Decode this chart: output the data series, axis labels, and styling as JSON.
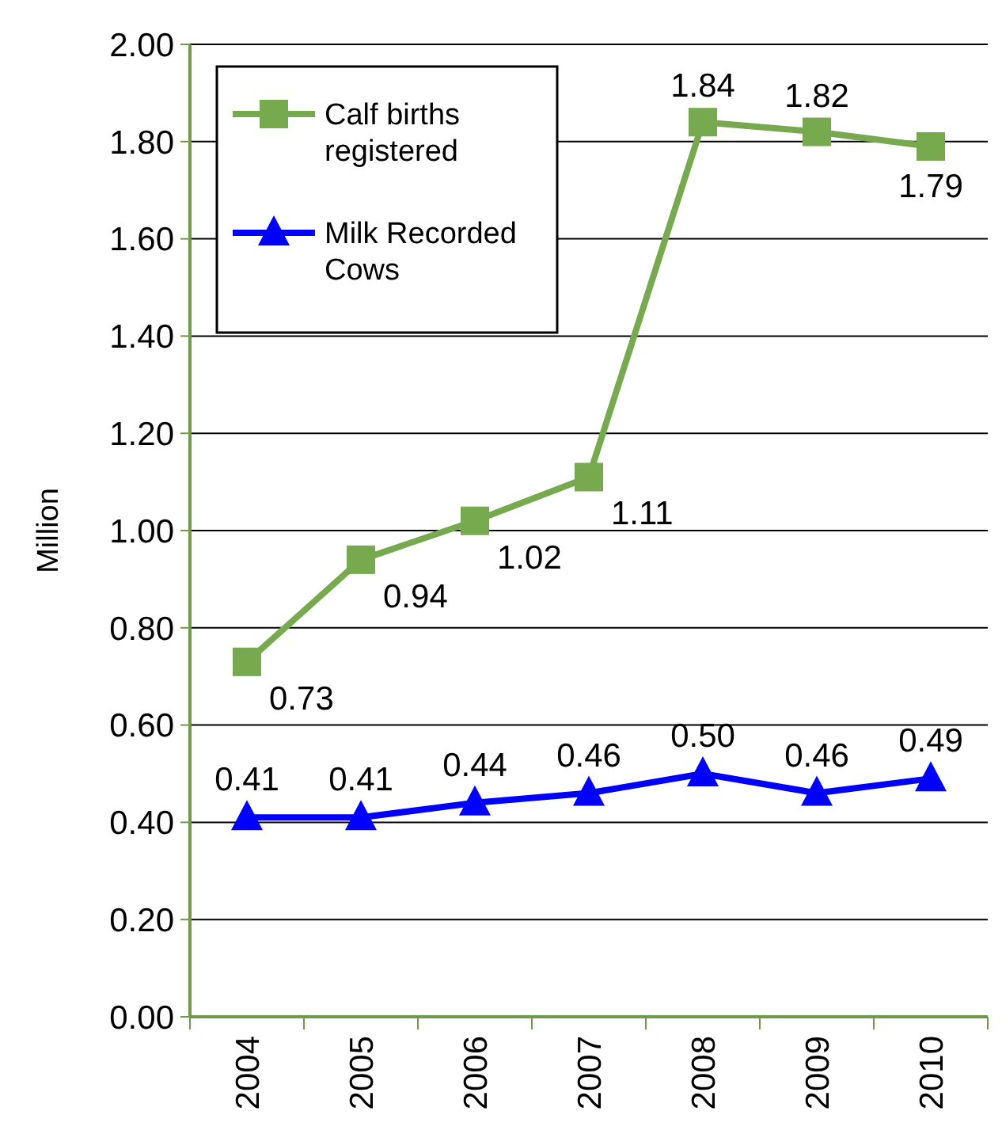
{
  "chart_data": {
    "type": "line",
    "ylabel": "Million",
    "categories": [
      "2004",
      "2005",
      "2006",
      "2007",
      "2008",
      "2009",
      "2010"
    ],
    "series": [
      {
        "name": "Calf births registered",
        "color": "#77a94e",
        "marker": "square",
        "values": [
          0.73,
          0.94,
          1.02,
          1.11,
          1.84,
          1.82,
          1.79
        ],
        "value_labels": [
          "0.73",
          "0.94",
          "1.02",
          "1.11",
          "1.84",
          "1.82",
          "1.79"
        ]
      },
      {
        "name": "Milk Recorded Cows",
        "color": "#0000ff",
        "marker": "triangle",
        "values": [
          0.41,
          0.41,
          0.44,
          0.46,
          0.5,
          0.46,
          0.49
        ],
        "value_labels": [
          "0.41",
          "0.41",
          "0.44",
          "0.46",
          "0.50",
          "0.46",
          "0.49"
        ]
      }
    ],
    "ylim": [
      0,
      2
    ],
    "yticks": [
      {
        "value": 0,
        "label": "0.00"
      },
      {
        "value": 0.2,
        "label": "0.20"
      },
      {
        "value": 0.4,
        "label": "0.40"
      },
      {
        "value": 0.6,
        "label": "0.60"
      },
      {
        "value": 0.8,
        "label": "0.80"
      },
      {
        "value": 1,
        "label": "1.00"
      },
      {
        "value": 1.2,
        "label": "1.20"
      },
      {
        "value": 1.4,
        "label": "1.40"
      },
      {
        "value": 1.6,
        "label": "1.60"
      },
      {
        "value": 1.8,
        "label": "1.80"
      },
      {
        "value": 2,
        "label": "2.00"
      }
    ],
    "grid": "y",
    "legend": "top left",
    "line_style": "solid"
  }
}
